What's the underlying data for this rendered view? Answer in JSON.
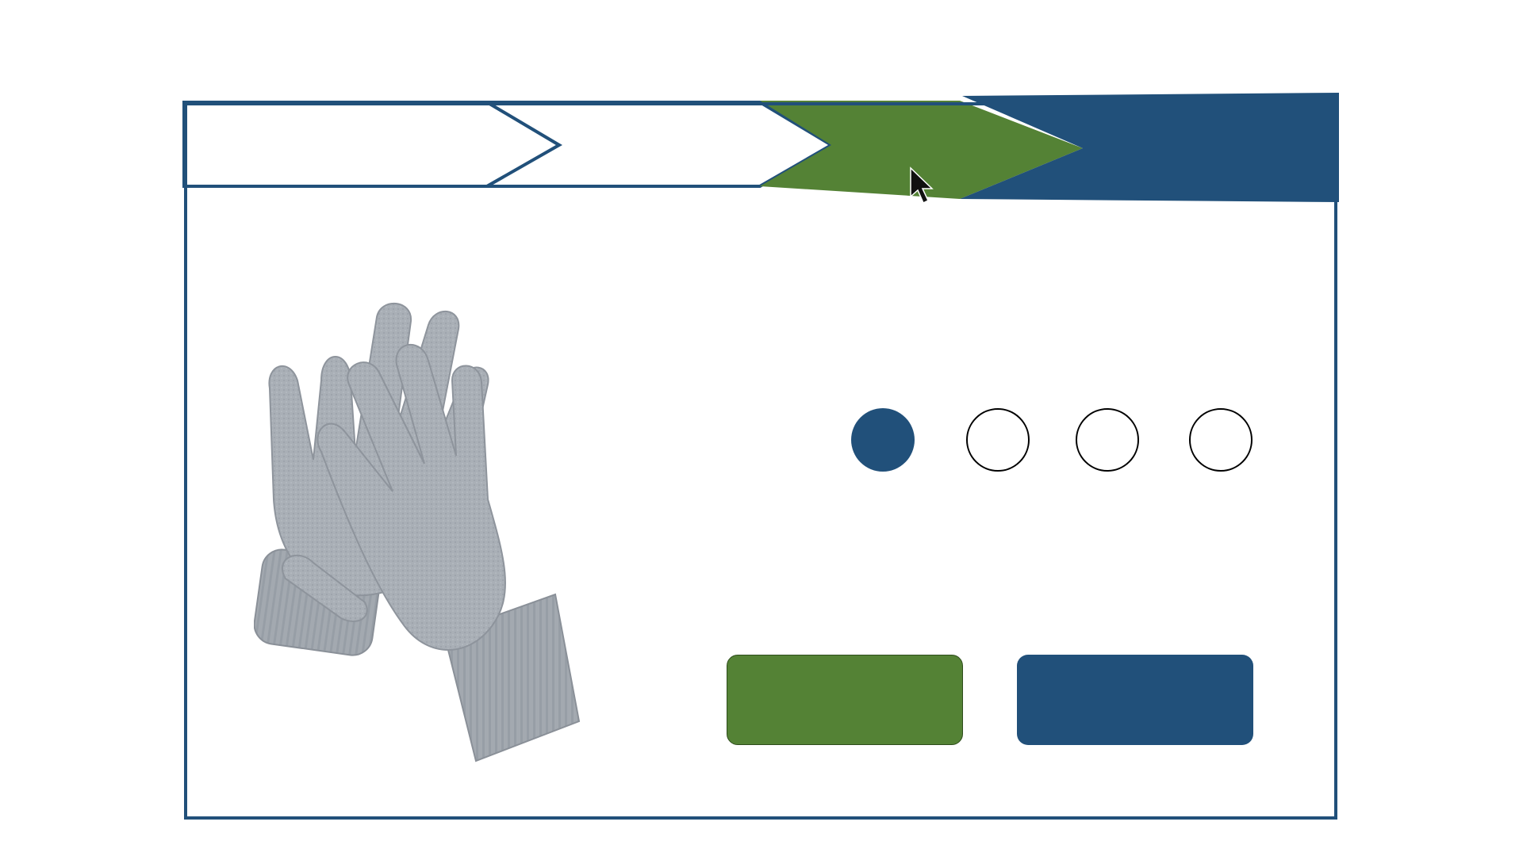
{
  "wizard": {
    "steps": [
      {
        "label": "",
        "state": "completed"
      },
      {
        "label": "",
        "state": "completed"
      },
      {
        "label": "",
        "state": "current"
      },
      {
        "label": "",
        "state": "upcoming"
      }
    ]
  },
  "product": {
    "image": "gray-knit-gloves"
  },
  "carousel": {
    "active_index": 1,
    "total": 4
  },
  "actions": {
    "primary_label": "",
    "secondary_label": ""
  },
  "colors": {
    "brand_blue": "#21507A",
    "brand_green": "#548235",
    "glove_gray": "#A9AFB6"
  }
}
